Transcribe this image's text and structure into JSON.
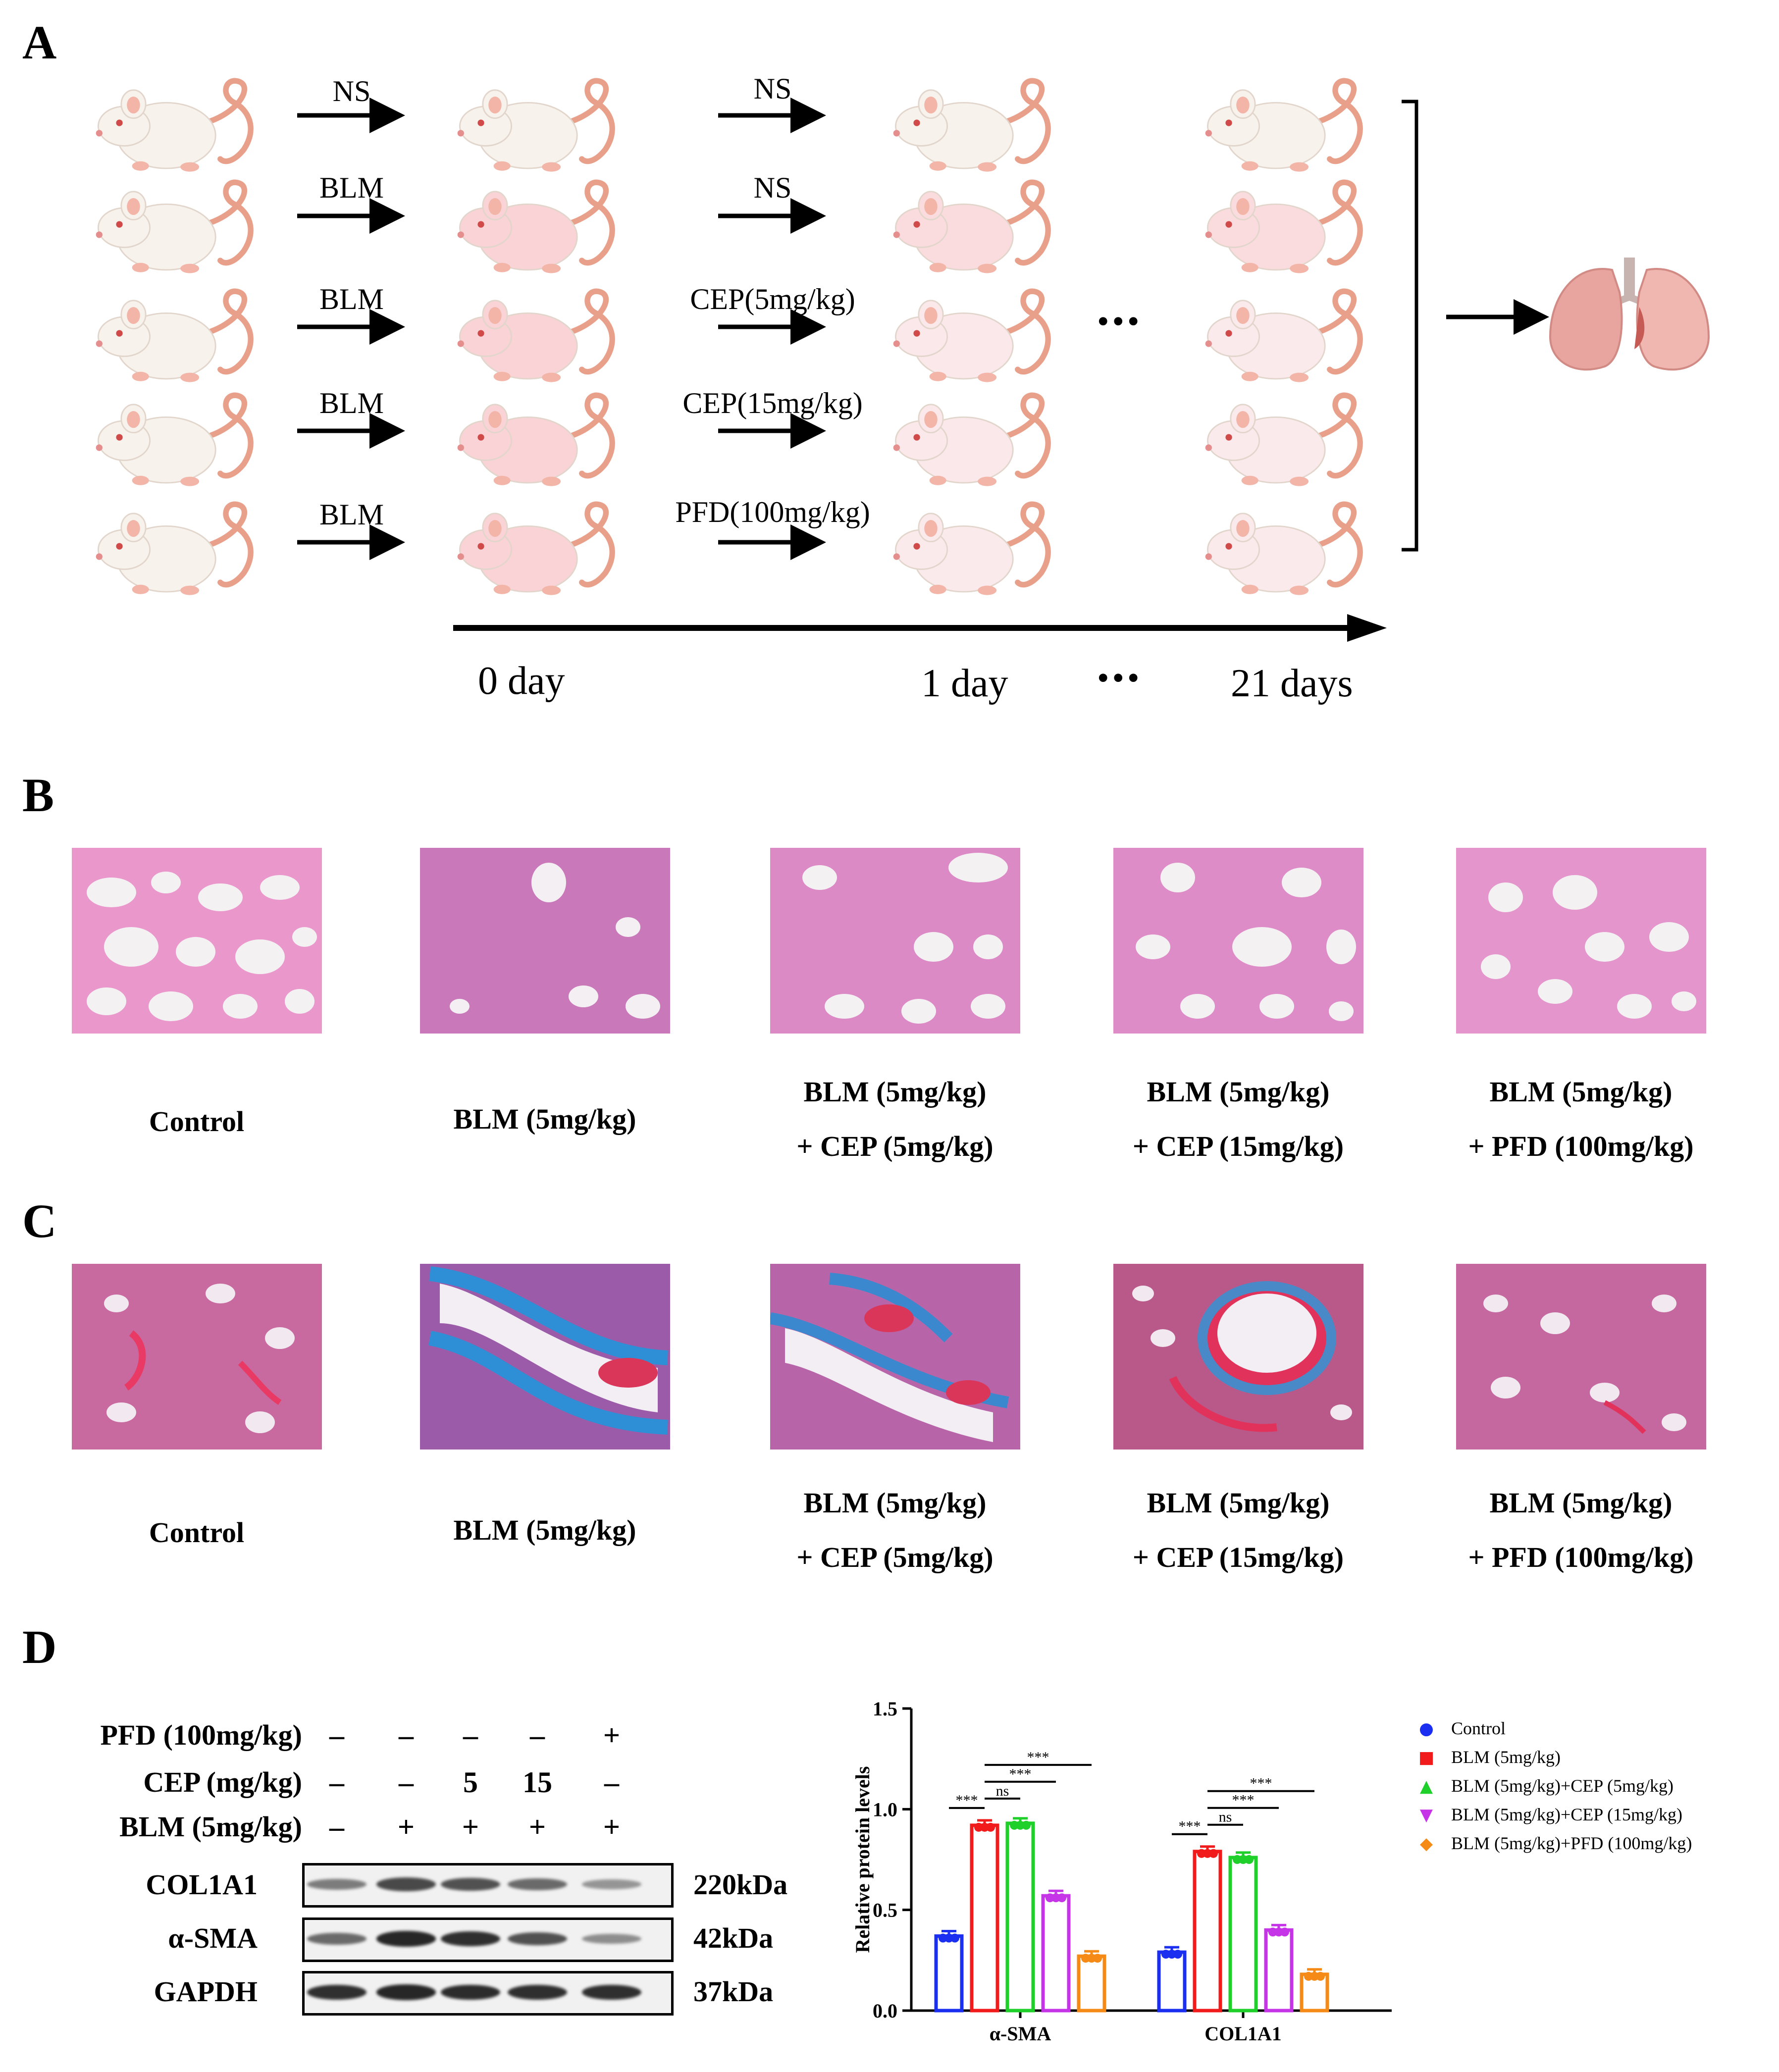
{
  "panels": {
    "a": "A",
    "b": "B",
    "c": "C",
    "d": "D"
  },
  "panel_a": {
    "step1_labels": [
      "NS",
      "BLM",
      "BLM",
      "BLM",
      "BLM"
    ],
    "step2_labels": [
      "NS",
      "NS",
      "CEP(5mg/kg)",
      "CEP(15mg/kg)",
      "PFD(100mg/kg)"
    ],
    "ellipsis": "•••",
    "timeline": {
      "day0": "0 day",
      "day1": "1 day",
      "ellipsis": "•••",
      "day21": "21 days"
    },
    "colors": {
      "mouse_white": "#f7f2ec",
      "mouse_pink": "#f9d3d6",
      "tail": "#e9a08a",
      "lung": "#e8a49e"
    }
  },
  "captions": {
    "control": "Control",
    "blm": "BLM (5mg/kg)",
    "cep5_l1": "BLM (5mg/kg)",
    "cep5_l2": "+ CEP (5mg/kg)",
    "cep15_l1": "BLM (5mg/kg)",
    "cep15_l2": "+ CEP (15mg/kg)",
    "pfd_l1": "BLM (5mg/kg)",
    "pfd_l2": "+ PFD (100mg/kg)"
  },
  "panel_d": {
    "western_blot": {
      "treatments": [
        {
          "label": "PFD (100mg/kg)",
          "signs": [
            "–",
            "–",
            "–",
            "–",
            "+"
          ]
        },
        {
          "label": "CEP (mg/kg)",
          "signs": [
            "–",
            "–",
            "5",
            "15",
            "–"
          ]
        },
        {
          "label": "BLM (5mg/kg)",
          "signs": [
            "–",
            "+",
            "+",
            "+",
            "+"
          ]
        }
      ],
      "proteins": [
        {
          "name": "COL1A1",
          "kda": "220kDa",
          "intensity": [
            0.45,
            0.75,
            0.7,
            0.55,
            0.3
          ]
        },
        {
          "name": "α-SMA",
          "kda": "42kDa",
          "intensity": [
            0.55,
            0.95,
            0.9,
            0.7,
            0.35
          ]
        },
        {
          "name": "GAPDH",
          "kda": "37kDa",
          "intensity": [
            0.9,
            0.95,
            0.92,
            0.9,
            0.9
          ]
        }
      ]
    }
  },
  "chart_data": {
    "type": "bar",
    "categories": [
      "α-SMA",
      "COL1A1"
    ],
    "ylabel": "Relative protein levels",
    "ylim": [
      0,
      1.5
    ],
    "yticks": [
      "0.0",
      "0.5",
      "1.0",
      "1.5"
    ],
    "series": [
      {
        "name": "Control",
        "color": "#1b2ff0",
        "values": [
          0.37,
          0.29
        ],
        "marker": "●"
      },
      {
        "name": "BLM (5mg/kg)",
        "color": "#f21b1b",
        "values": [
          0.92,
          0.79
        ],
        "marker": "■"
      },
      {
        "name": "BLM (5mg/kg)+CEP (5mg/kg)",
        "color": "#1fcf2a",
        "values": [
          0.93,
          0.76
        ],
        "marker": "▲"
      },
      {
        "name": "BLM (5mg/kg)+CEP (15mg/kg)",
        "color": "#c634e8",
        "values": [
          0.57,
          0.4
        ],
        "marker": "▼"
      },
      {
        "name": "BLM (5mg/kg)+PFD (100mg/kg)",
        "color": "#f58a16",
        "values": [
          0.27,
          0.18
        ],
        "marker": "◆"
      }
    ],
    "significance": [
      {
        "group": 0,
        "from": 0,
        "to": 1,
        "label": "***"
      },
      {
        "group": 0,
        "from": 1,
        "to": 2,
        "label": "ns"
      },
      {
        "group": 0,
        "from": 1,
        "to": 3,
        "label": "***"
      },
      {
        "group": 0,
        "from": 1,
        "to": 4,
        "label": "***"
      },
      {
        "group": 1,
        "from": 0,
        "to": 1,
        "label": "***"
      },
      {
        "group": 1,
        "from": 1,
        "to": 2,
        "label": "ns"
      },
      {
        "group": 1,
        "from": 1,
        "to": 3,
        "label": "***"
      },
      {
        "group": 1,
        "from": 1,
        "to": 4,
        "label": "***"
      }
    ],
    "legend_position": "top-right"
  }
}
